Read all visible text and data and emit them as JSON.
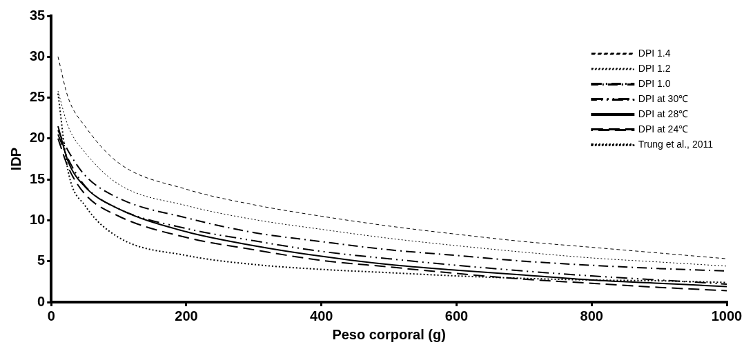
{
  "chart_data": {
    "type": "line",
    "xlabel": "Peso corporal (g)",
    "ylabel": "IDP",
    "xlim": [
      0,
      1000
    ],
    "xticks": [
      0,
      200,
      400,
      600,
      800,
      1000
    ],
    "ylim": [
      0,
      35
    ],
    "yticks": [
      0,
      5,
      10,
      15,
      20,
      25,
      30,
      35
    ],
    "grid": false,
    "legend": "top right",
    "marker": "none",
    "x": [
      10,
      25,
      50,
      100,
      200,
      300,
      400,
      500,
      600,
      700,
      800,
      900,
      1000
    ],
    "series": [
      {
        "name": "DPI 1.4",
        "color": "#000000",
        "line_style": "dashed",
        "values": [
          30,
          25,
          21.5,
          17,
          13.8,
          11.9,
          10.5,
          9.3,
          8.3,
          7.4,
          6.7,
          6,
          5.3
        ]
      },
      {
        "name": "DPI 1.2",
        "color": "#000000",
        "line_style": "dotted",
        "values": [
          25.8,
          21.5,
          18.3,
          14.4,
          11.8,
          10.1,
          8.9,
          7.8,
          6.9,
          6.1,
          5.4,
          4.9,
          4.4
        ]
      },
      {
        "name": "DPI 1.0",
        "color": "#000000",
        "line_style": "dashdot",
        "values": [
          21,
          18.5,
          15.5,
          12.7,
          10.3,
          8.5,
          7.4,
          6.4,
          5.7,
          5,
          4.5,
          4.1,
          3.8
        ]
      },
      {
        "name": "DPI at 30℃",
        "color": "#000000",
        "line_style": "dashdotdot",
        "values": [
          20.5,
          17.5,
          14.2,
          11.4,
          9,
          7.5,
          6.2,
          5.3,
          4.5,
          3.8,
          3.2,
          2.7,
          2.2
        ]
      },
      {
        "name": "DPI at 28℃",
        "color": "#000000",
        "line_style": "solid",
        "values": [
          21.5,
          17.2,
          14.1,
          11.4,
          8.6,
          6.9,
          5.6,
          4.6,
          3.9,
          3.3,
          2.7,
          2.3,
          1.9
        ]
      },
      {
        "name": "DPI at 24℃",
        "color": "#000000",
        "line_style": "longdash",
        "values": [
          20,
          16.5,
          13.2,
          10.5,
          7.9,
          6.4,
          5.1,
          4.3,
          3.5,
          2.8,
          2.3,
          1.8,
          1.4
        ]
      },
      {
        "name": "Trung et al., 2011",
        "color": "#000000",
        "line_style": "dotted",
        "values": [
          25.5,
          16,
          11.8,
          7.9,
          5.7,
          4.6,
          4,
          3.6,
          3.2,
          2.9,
          2.7,
          2.6,
          2.4
        ]
      }
    ]
  }
}
